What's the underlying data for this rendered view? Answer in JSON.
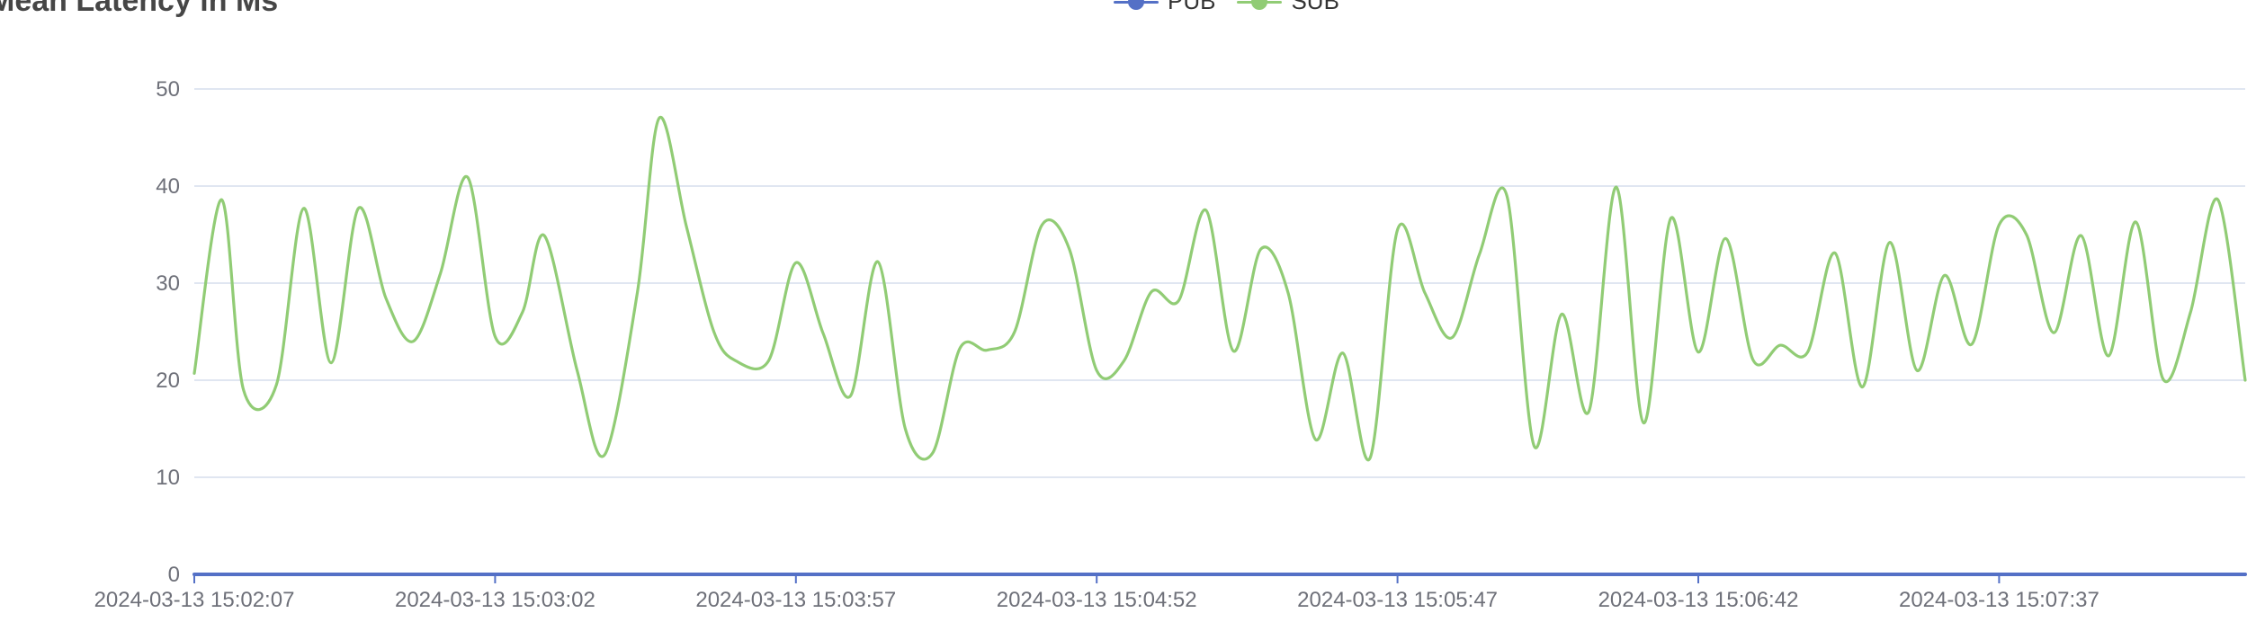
{
  "chart_data": {
    "type": "line",
    "title": "Mean Latency in Ms",
    "xlabel": "",
    "ylabel": "",
    "ylim": [
      0,
      50
    ],
    "yticks": [
      "0",
      "10",
      "20",
      "30",
      "40",
      "50"
    ],
    "grid": true,
    "legend_position": "top-center",
    "x_tick_labels": [
      "2024-03-13 15:02:07",
      "2024-03-13 15:03:02",
      "2024-03-13 15:03:57",
      "2024-03-13 15:04:52",
      "2024-03-13 15:05:47",
      "2024-03-13 15:06:42",
      "2024-03-13 15:07:37"
    ],
    "x_start": "2024-03-13 15:02:07",
    "x_end": "2024-03-13 15:08:22",
    "series": [
      {
        "name": "PUB",
        "color": "#5470c6",
        "x": [
          "2024-03-13 15:02:07",
          "2024-03-13 15:08:22"
        ],
        "values": [
          0,
          0
        ]
      },
      {
        "name": "SUB",
        "color": "#91cc75",
        "x": [
          "2024-03-13 15:02:07",
          "2024-03-13 15:02:12",
          "2024-03-13 15:02:16",
          "2024-03-13 15:02:22",
          "2024-03-13 15:02:27",
          "2024-03-13 15:02:32",
          "2024-03-13 15:02:37",
          "2024-03-13 15:02:42",
          "2024-03-13 15:02:47",
          "2024-03-13 15:02:52",
          "2024-03-13 15:02:57",
          "2024-03-13 15:03:02",
          "2024-03-13 15:03:07",
          "2024-03-13 15:03:11",
          "2024-03-13 15:03:17",
          "2024-03-13 15:03:22",
          "2024-03-13 15:03:28",
          "2024-03-13 15:03:32",
          "2024-03-13 15:03:37",
          "2024-03-13 15:03:42",
          "2024-03-13 15:03:46",
          "2024-03-13 15:03:52",
          "2024-03-13 15:03:57",
          "2024-03-13 15:04:02",
          "2024-03-13 15:04:07",
          "2024-03-13 15:04:12",
          "2024-03-13 15:04:17",
          "2024-03-13 15:04:22",
          "2024-03-13 15:04:27",
          "2024-03-13 15:04:32",
          "2024-03-13 15:04:37",
          "2024-03-13 15:04:42",
          "2024-03-13 15:04:47",
          "2024-03-13 15:04:52",
          "2024-03-13 15:04:57",
          "2024-03-13 15:05:02",
          "2024-03-13 15:05:07",
          "2024-03-13 15:05:12",
          "2024-03-13 15:05:17",
          "2024-03-13 15:05:22",
          "2024-03-13 15:05:27",
          "2024-03-13 15:05:32",
          "2024-03-13 15:05:37",
          "2024-03-13 15:05:42",
          "2024-03-13 15:05:47",
          "2024-03-13 15:05:52",
          "2024-03-13 15:05:57",
          "2024-03-13 15:06:02",
          "2024-03-13 15:06:07",
          "2024-03-13 15:06:12",
          "2024-03-13 15:06:17",
          "2024-03-13 15:06:22",
          "2024-03-13 15:06:27",
          "2024-03-13 15:06:32",
          "2024-03-13 15:06:37",
          "2024-03-13 15:06:42",
          "2024-03-13 15:06:47",
          "2024-03-13 15:06:52",
          "2024-03-13 15:06:57",
          "2024-03-13 15:07:02",
          "2024-03-13 15:07:07",
          "2024-03-13 15:07:12",
          "2024-03-13 15:07:17",
          "2024-03-13 15:07:22",
          "2024-03-13 15:07:27",
          "2024-03-13 15:07:32",
          "2024-03-13 15:07:37",
          "2024-03-13 15:07:42",
          "2024-03-13 15:07:47",
          "2024-03-13 15:07:52",
          "2024-03-13 15:07:57",
          "2024-03-13 15:08:02",
          "2024-03-13 15:08:07",
          "2024-03-13 15:08:12",
          "2024-03-13 15:08:17",
          "2024-03-13 15:08:22"
        ],
        "values": [
          20.7,
          38.6,
          19.0,
          19.5,
          37.7,
          21.8,
          37.7,
          28.5,
          24.0,
          31.0,
          40.9,
          24.5,
          27.0,
          34.9,
          21.0,
          12.3,
          29.0,
          47.0,
          35.8,
          25.0,
          22.0,
          22.0,
          32.1,
          24.8,
          18.4,
          32.2,
          15.0,
          12.5,
          23.3,
          23.1,
          25.0,
          36.0,
          33.5,
          21.0,
          22.0,
          29.1,
          28.2,
          37.5,
          23.0,
          33.5,
          29.0,
          13.9,
          22.8,
          12.0,
          35.5,
          29.0,
          24.4,
          33.0,
          39.0,
          13.2,
          26.8,
          16.8,
          39.9,
          15.6,
          36.7,
          22.9,
          34.6,
          22.1,
          23.6,
          22.9,
          33.1,
          19.3,
          34.2,
          21.0,
          30.8,
          23.7,
          36.0,
          35.0,
          24.9,
          34.9,
          22.5,
          36.3,
          20.1,
          27.0,
          38.6,
          20.0
        ]
      }
    ]
  }
}
